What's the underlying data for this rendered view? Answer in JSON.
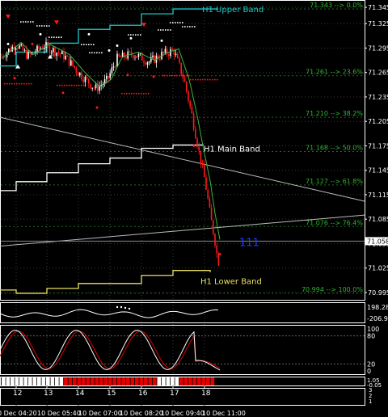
{
  "chart_data": [
    {
      "type": "candlestick",
      "title": "",
      "price_axis": {
        "ylim": [
          70.985,
          71.352
        ],
        "ticks": [
          "71.345",
          "71.325",
          "71.295",
          "71.265",
          "71.235",
          "71.205",
          "71.175",
          "71.145",
          "71.115",
          "71.085",
          "71.055",
          "71.025",
          "70.995"
        ]
      },
      "current_price": "71.058",
      "price_label": "111",
      "fibonacci_levels": [
        {
          "price": 71.343,
          "label": "71.343 --> 0.0%"
        },
        {
          "price": 71.261,
          "label": "71.261 --> 23.6%"
        },
        {
          "price": 71.21,
          "label": "71.210 --> 38.2%"
        },
        {
          "price": 71.168,
          "label": "71.168 --> 50.0%"
        },
        {
          "price": 71.127,
          "label": "71.127 --> 61.8%"
        },
        {
          "price": 71.076,
          "label": "71.076 --> 76.4%"
        },
        {
          "price": 70.994,
          "label": "70.994 --> 100.0%"
        }
      ],
      "bands": {
        "upper": {
          "name": "H1 Upper Band",
          "color": "#1ec8c8"
        },
        "main": {
          "name": "H1 Main Band",
          "color": "#ffffff"
        },
        "lower": {
          "name": "H1 Lower Band",
          "color": "#e8e060"
        }
      },
      "colors": {
        "bull": "#ffffff",
        "bear": "#ff1a1a",
        "fib": "#2db82d",
        "label": "#1e3cff",
        "grid": "#3a3a3a"
      }
    },
    {
      "type": "line",
      "name": "oscillator",
      "ticks": [
        "198.286",
        "-206.906"
      ],
      "ylim": [
        -206.906,
        198.286
      ]
    },
    {
      "type": "line",
      "name": "stochastic",
      "ticks": [
        "100",
        "80",
        "20",
        "0"
      ],
      "ylim": [
        0,
        100
      ]
    },
    {
      "type": "heatmap",
      "name": "trend-bar",
      "ticks": [
        "1.05",
        "-0.05"
      ],
      "segments": [
        {
          "color": "#ffffff",
          "count": 14
        },
        {
          "color": "#e00000",
          "count": 21
        },
        {
          "color": "#ffffff",
          "count": 5
        },
        {
          "color": "#e00000",
          "count": 8
        }
      ]
    },
    {
      "type": "line",
      "name": "volume",
      "ticks": [
        "3",
        "2",
        "1"
      ]
    }
  ],
  "x_axis": {
    "day_labels": [
      "12",
      "13",
      "14",
      "15",
      "16",
      "17",
      "18"
    ],
    "time_labels": [
      "0 Dec 04:20",
      "10 Dec 05:40",
      "10 Dec 07:00",
      "10 Dec 08:20",
      "10 Dec 09:40",
      "10 Dec 11:00"
    ]
  }
}
